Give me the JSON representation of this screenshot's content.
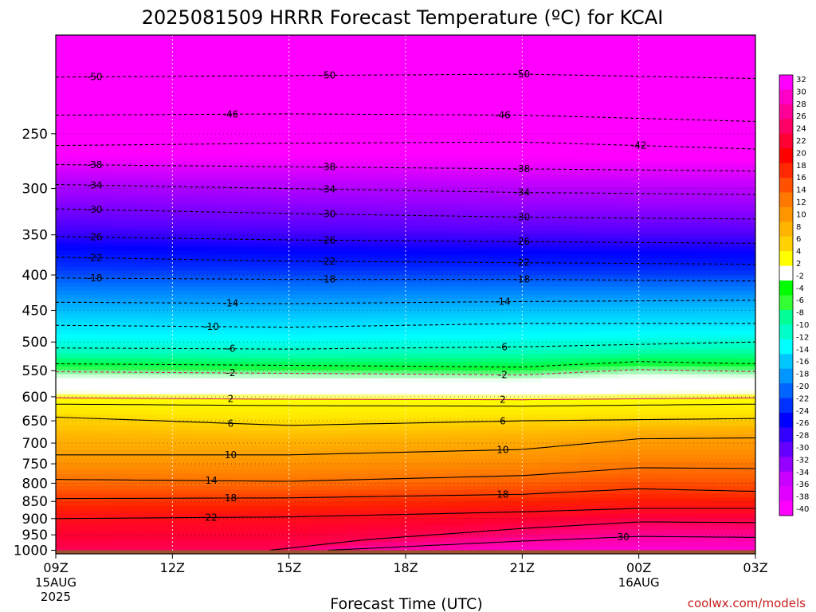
{
  "chart_data": {
    "type": "heatmap",
    "title": "2025081509 HRRR Forecast Temperature (ºC) for KCAI",
    "xlabel": "Forecast Time (UTC)",
    "credit": "coolwx.com/models",
    "x_ticks": [
      {
        "hour": 0,
        "label": "09Z",
        "sub1": "15AUG",
        "sub2": "2025"
      },
      {
        "hour": 3,
        "label": "12Z",
        "sub1": "",
        "sub2": ""
      },
      {
        "hour": 6,
        "label": "15Z",
        "sub1": "",
        "sub2": ""
      },
      {
        "hour": 9,
        "label": "18Z",
        "sub1": "",
        "sub2": ""
      },
      {
        "hour": 12,
        "label": "21Z",
        "sub1": "",
        "sub2": ""
      },
      {
        "hour": 15,
        "label": "00Z",
        "sub1": "16AUG",
        "sub2": ""
      },
      {
        "hour": 18,
        "label": "03Z",
        "sub1": "",
        "sub2": ""
      }
    ],
    "xlim_hours": [
      0,
      18
    ],
    "y_ticks": [
      250,
      300,
      350,
      400,
      450,
      500,
      550,
      600,
      650,
      700,
      750,
      800,
      850,
      900,
      950,
      1000
    ],
    "ylim_hpa": [
      180,
      1012
    ],
    "yscale": "log-pressure",
    "grid": "dotted",
    "colorbar": {
      "labels": [
        "32",
        "30",
        "28",
        "26",
        "24",
        "22",
        "20",
        "18",
        "16",
        "14",
        "12",
        "10",
        "8",
        "6",
        "4",
        "2",
        "-2",
        "-4",
        "-6",
        "-8",
        "-10",
        "-12",
        "-14",
        "-16",
        "-18",
        "-20",
        "-22",
        "-24",
        "-26",
        "-28",
        "-30",
        "-32",
        "-34",
        "-36",
        "-38",
        "-40"
      ],
      "colors": [
        "#ff00ff",
        "#ff00c8",
        "#ff0096",
        "#ff0064",
        "#ff0032",
        "#ff0000",
        "#ff2800",
        "#ff5000",
        "#ff7800",
        "#ff9600",
        "#ffb400",
        "#ffd200",
        "#ffff00",
        "#ffffff",
        "#00ff00",
        "#32ff32",
        "#00ff96",
        "#00ffc8",
        "#00ffff",
        "#00c8ff",
        "#0096ff",
        "#0064ff",
        "#0032ff",
        "#0000ff",
        "#3200ff",
        "#6400ff",
        "#9600ff",
        "#c800ff",
        "#e100ff",
        "#ff00ff"
      ]
    },
    "isotherms": [
      {
        "temp": -50,
        "points": [
          [
            0,
            207
          ],
          [
            6,
            206
          ],
          [
            12,
            205
          ],
          [
            18,
            208
          ]
        ],
        "labels": [
          "-50",
          "-50",
          "-50"
        ]
      },
      {
        "temp": -46,
        "points": [
          [
            0,
            235
          ],
          [
            6,
            234
          ],
          [
            12,
            235
          ],
          [
            18,
            240
          ]
        ],
        "labels": [
          "-46",
          "-46"
        ]
      },
      {
        "temp": -42,
        "points": [
          [
            0,
            260
          ],
          [
            6,
            258
          ],
          [
            12,
            257
          ],
          [
            18,
            263
          ]
        ],
        "labels": [
          "-42"
        ]
      },
      {
        "temp": -38,
        "points": [
          [
            0,
            277
          ],
          [
            6,
            279
          ],
          [
            12,
            281
          ],
          [
            18,
            283
          ]
        ],
        "labels": [
          "-38",
          "-38",
          "-38"
        ]
      },
      {
        "temp": -34,
        "points": [
          [
            0,
            296
          ],
          [
            6,
            300
          ],
          [
            12,
            304
          ],
          [
            18,
            306
          ]
        ],
        "labels": [
          "-34",
          "-34",
          "-34"
        ]
      },
      {
        "temp": -30,
        "points": [
          [
            0,
            321
          ],
          [
            6,
            326
          ],
          [
            12,
            330
          ],
          [
            18,
            332
          ]
        ],
        "labels": [
          "-30",
          "-30",
          "-30"
        ]
      },
      {
        "temp": -26,
        "points": [
          [
            0,
            352
          ],
          [
            6,
            356
          ],
          [
            12,
            358
          ],
          [
            18,
            360
          ]
        ],
        "labels": [
          "-26",
          "-26",
          "-26"
        ]
      },
      {
        "temp": -22,
        "points": [
          [
            0,
            377
          ],
          [
            6,
            382
          ],
          [
            12,
            384
          ],
          [
            18,
            386
          ]
        ],
        "labels": [
          "-22",
          "-22",
          "-22"
        ]
      },
      {
        "temp": -18,
        "points": [
          [
            0,
            404
          ],
          [
            6,
            406
          ],
          [
            12,
            406
          ],
          [
            18,
            408
          ]
        ],
        "labels": [
          "-18",
          "-18",
          "-18"
        ]
      },
      {
        "temp": -14,
        "points": [
          [
            0,
            438
          ],
          [
            6,
            440
          ],
          [
            12,
            437
          ],
          [
            18,
            435
          ]
        ],
        "labels": [
          "-14",
          "-14"
        ]
      },
      {
        "temp": -10,
        "points": [
          [
            0,
            473
          ],
          [
            6,
            476
          ],
          [
            12,
            470
          ],
          [
            18,
            470
          ]
        ],
        "labels": [
          "-10"
        ]
      },
      {
        "temp": -6,
        "points": [
          [
            0,
            510
          ],
          [
            6,
            512
          ],
          [
            12,
            508
          ],
          [
            18,
            500
          ]
        ],
        "labels": [
          "-6",
          "-6"
        ]
      },
      {
        "temp": -2,
        "points": [
          [
            0,
            552
          ],
          [
            6,
            555
          ],
          [
            12,
            558
          ],
          [
            15,
            548
          ],
          [
            18,
            552
          ]
        ],
        "labels": [
          "-2",
          "-2"
        ]
      },
      {
        "temp": 2,
        "points": [
          [
            0,
            602
          ],
          [
            6,
            605
          ],
          [
            12,
            606
          ],
          [
            18,
            602
          ]
        ],
        "labels": [
          "2",
          "2"
        ]
      },
      {
        "temp": 6,
        "points": [
          [
            0,
            642
          ],
          [
            6,
            660
          ],
          [
            12,
            650
          ],
          [
            18,
            645
          ]
        ],
        "labels": [
          "6",
          "6"
        ]
      },
      {
        "temp": 10,
        "points": [
          [
            0,
            728
          ],
          [
            6,
            728
          ],
          [
            12,
            715
          ],
          [
            15,
            690
          ],
          [
            18,
            688
          ]
        ],
        "labels": [
          "10",
          "10"
        ]
      },
      {
        "temp": 14,
        "points": [
          [
            0,
            790
          ],
          [
            6,
            795
          ],
          [
            12,
            780
          ],
          [
            15,
            760
          ],
          [
            18,
            762
          ]
        ],
        "labels": [
          "14"
        ]
      },
      {
        "temp": 18,
        "points": [
          [
            0,
            842
          ],
          [
            6,
            840
          ],
          [
            12,
            830
          ],
          [
            15,
            815
          ],
          [
            18,
            822
          ]
        ],
        "labels": [
          "18",
          "18"
        ]
      },
      {
        "temp": 22,
        "points": [
          [
            0,
            900
          ],
          [
            6,
            895
          ],
          [
            12,
            880
          ],
          [
            15,
            870
          ],
          [
            18,
            870
          ]
        ],
        "labels": [
          "22"
        ]
      },
      {
        "temp": 26,
        "points": [
          [
            5.5,
            1000
          ],
          [
            8,
            965
          ],
          [
            12,
            930
          ],
          [
            15,
            910
          ],
          [
            18,
            912
          ]
        ],
        "labels": []
      },
      {
        "temp": 30,
        "points": [
          [
            7,
            1000
          ],
          [
            12,
            970
          ],
          [
            15,
            955
          ],
          [
            18,
            958
          ]
        ],
        "labels": [
          "30"
        ]
      }
    ]
  }
}
